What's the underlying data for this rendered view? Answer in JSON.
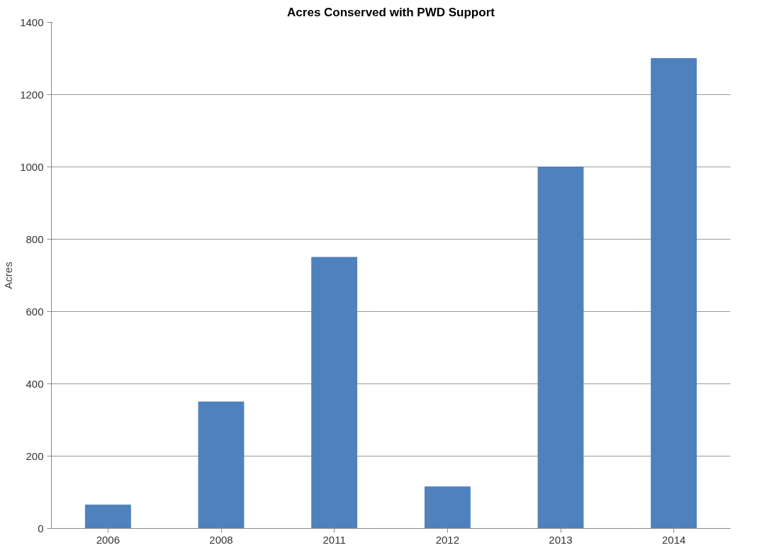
{
  "chart_data": {
    "type": "bar",
    "title": "Acres Conserved with PWD Support",
    "ylabel": "Acres",
    "categories": [
      "2006",
      "2008",
      "2011",
      "2012",
      "2013",
      "2014"
    ],
    "values": [
      65,
      350,
      750,
      115,
      1000,
      1300
    ],
    "color": "#4f81bd",
    "ylim": [
      0,
      1400
    ],
    "yticks": [
      0,
      200,
      400,
      600,
      800,
      1000,
      1200,
      1400
    ],
    "grid": "y"
  }
}
